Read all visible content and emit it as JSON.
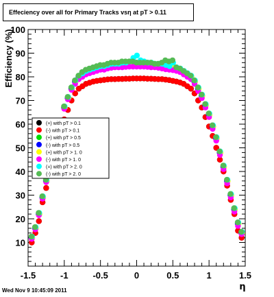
{
  "title": "Effeciency over all for Primary Tracks vsη at pT > 0.11",
  "footer": "Wed Nov  9 10:45:09 2011",
  "chart_data": {
    "type": "scatter",
    "xlabel": "η",
    "ylabel": "Efficiency (%)",
    "xlim": [
      -1.5,
      1.5
    ],
    "ylim": [
      0,
      100
    ],
    "x_ticks": [
      "-1.5",
      "-1",
      "-0.5",
      "0",
      "0.5",
      "1",
      "1.5"
    ],
    "y_ticks": [
      "10",
      "20",
      "30",
      "40",
      "50",
      "60",
      "70",
      "80",
      "90",
      "100"
    ],
    "legend_position": "middle-left",
    "x": [
      -1.45,
      -1.4,
      -1.35,
      -1.3,
      -1.25,
      -1.2,
      -1.15,
      -1.1,
      -1.05,
      -1.0,
      -0.95,
      -0.9,
      -0.85,
      -0.8,
      -0.75,
      -0.7,
      -0.65,
      -0.6,
      -0.55,
      -0.5,
      -0.45,
      -0.4,
      -0.35,
      -0.3,
      -0.25,
      -0.2,
      -0.15,
      -0.1,
      -0.05,
      0.0,
      0.05,
      0.1,
      0.15,
      0.2,
      0.25,
      0.3,
      0.35,
      0.4,
      0.45,
      0.5,
      0.55,
      0.6,
      0.65,
      0.7,
      0.75,
      0.8,
      0.85,
      0.9,
      0.95,
      1.0,
      1.05,
      1.1,
      1.15,
      1.2,
      1.25,
      1.3,
      1.35,
      1.4,
      1.45
    ],
    "series": [
      {
        "name": "(+) with pT > 0.1",
        "color": "#000000",
        "offset": 0.0,
        "values": [
          10,
          14,
          19,
          27,
          33,
          40,
          45,
          50,
          56,
          62,
          66,
          70,
          73,
          75,
          76,
          77,
          77.5,
          78,
          78.3,
          78.5,
          78.7,
          78.9,
          79,
          79,
          79.1,
          79.1,
          79.2,
          79.2,
          79.3,
          79.3,
          79.3,
          79.3,
          79.2,
          79.2,
          79.1,
          79,
          79,
          78.8,
          78.6,
          78.3,
          78,
          77.6,
          77,
          76,
          75,
          73,
          70,
          67,
          63,
          59,
          55,
          50,
          45,
          40,
          34,
          28,
          22,
          15,
          12
        ]
      },
      {
        "name": "(-) with pT > 0.1",
        "color": "#ff0000",
        "offset": 0.0,
        "values": [
          10,
          14,
          19,
          27,
          33,
          40,
          45,
          50,
          56,
          62,
          66,
          70,
          73,
          75,
          76,
          77,
          77.5,
          78,
          78.3,
          78.5,
          78.7,
          78.9,
          79,
          79,
          79.1,
          79.1,
          79.2,
          79.2,
          79.3,
          79.3,
          79.3,
          79.3,
          79.2,
          79.2,
          79.1,
          79,
          79,
          78.8,
          78.6,
          78.3,
          78,
          77.6,
          77,
          76,
          75,
          73,
          70,
          67,
          63,
          59,
          55,
          50,
          45,
          40,
          34,
          28,
          22,
          15,
          12
        ]
      },
      {
        "name": "(+) with pT > 0.5",
        "color": "#00dd00",
        "offset": 0.004,
        "values": [
          12,
          16,
          22,
          29,
          36,
          43,
          49,
          55,
          61,
          67,
          71,
          75,
          78,
          80,
          81,
          82,
          82.5,
          83,
          83.5,
          84,
          84,
          84.5,
          85,
          85,
          85,
          85.5,
          85.5,
          86,
          86,
          86,
          86,
          86,
          85.8,
          85.5,
          85.3,
          85,
          85,
          84.5,
          84.2,
          84,
          83.5,
          83,
          82,
          81,
          80,
          78,
          75,
          72,
          68,
          64,
          59,
          54,
          48,
          42,
          36,
          30,
          24,
          18,
          14
        ]
      },
      {
        "name": "(-) with pT > 0.5",
        "color": "#0000ff",
        "offset": -0.004,
        "values": [
          12,
          16,
          22,
          29,
          36,
          43,
          49,
          55,
          61,
          67,
          71,
          75,
          78,
          80,
          81,
          82,
          82.5,
          83,
          83.5,
          84,
          84,
          84.5,
          85,
          85,
          85,
          85.5,
          85.5,
          86,
          86,
          86,
          86,
          86,
          85.8,
          85.5,
          85.3,
          85,
          85,
          84.5,
          84.2,
          84,
          83.5,
          83,
          82,
          81,
          80,
          78,
          75,
          72,
          68,
          64,
          59,
          54,
          48,
          42,
          36,
          30,
          24,
          18,
          14
        ]
      },
      {
        "name": "(+) with pT > 1. 0",
        "color": "#ffff00",
        "offset": 0.008,
        "values": [
          12,
          16,
          22,
          29,
          36,
          43,
          49,
          55,
          61,
          67,
          71,
          75,
          78,
          80,
          81,
          82,
          82.5,
          83,
          83.5,
          84,
          84,
          84.5,
          85,
          85,
          85,
          85.5,
          85.5,
          86,
          86,
          86,
          86,
          86,
          85.8,
          85.5,
          85.3,
          85,
          85,
          84.5,
          84.2,
          84,
          83.5,
          83,
          82,
          81,
          80,
          78,
          75,
          72,
          68,
          64,
          59,
          54,
          48,
          42,
          36,
          30,
          24,
          18,
          14
        ]
      },
      {
        "name": "(-) with pT > 1. 0",
        "color": "#ff00ff",
        "offset": 0.0,
        "values": [
          11.5,
          15.5,
          21.5,
          28.5,
          35.5,
          42.5,
          48.5,
          54.5,
          60.5,
          66.5,
          70.5,
          74.5,
          77,
          79,
          80,
          81,
          81.5,
          82,
          82.5,
          83,
          83,
          83.5,
          83.8,
          84,
          84,
          84,
          84.2,
          84.3,
          84.3,
          84.3,
          84.3,
          84.3,
          84.2,
          84,
          84,
          83.8,
          83.5,
          83.2,
          83,
          82.8,
          82.5,
          82,
          81,
          80,
          79,
          77,
          74,
          71,
          67,
          63,
          58,
          53,
          47,
          41,
          35,
          29,
          23,
          17,
          13.5
        ]
      },
      {
        "name": "(+) with pT > 2. 0",
        "color": "#00ffff",
        "offset": 0.004,
        "values": [
          12.5,
          16.5,
          22.5,
          29.5,
          36.5,
          43.5,
          49.5,
          55.5,
          61.5,
          67.5,
          71.5,
          75.5,
          78.5,
          80.5,
          81.5,
          82.5,
          83,
          83.5,
          84,
          84.5,
          84.5,
          85,
          85.5,
          85.5,
          85.5,
          86,
          86,
          86.5,
          88,
          89,
          87,
          86.5,
          86,
          86,
          85.5,
          85.5,
          85.5,
          85,
          84.5,
          86,
          84,
          83.5,
          82.5,
          81.5,
          80.5,
          78.5,
          75.5,
          72.5,
          68.5,
          64.5,
          59.5,
          54.5,
          48.5,
          42.5,
          36.5,
          30.5,
          24.5,
          18.5,
          14.5
        ]
      },
      {
        "name": "(-) with pT > 2. 0",
        "color": "#55bb55",
        "offset": -0.004,
        "values": [
          12.5,
          16.5,
          22.5,
          29.5,
          36.5,
          43.5,
          49.5,
          55.5,
          61.5,
          67.5,
          71.5,
          75.5,
          78.5,
          80.5,
          82,
          83,
          83.5,
          84,
          84.5,
          85,
          85,
          85.5,
          86,
          86,
          86,
          86.5,
          86.5,
          86.5,
          86.5,
          86,
          86,
          86,
          86,
          86,
          85.5,
          85.5,
          86,
          87,
          86.5,
          87,
          84,
          83.5,
          82.5,
          81.5,
          80.5,
          78.5,
          75.5,
          72.5,
          68.5,
          64.5,
          59.5,
          54.5,
          48.5,
          42.5,
          36.5,
          30.5,
          24.5,
          18.5,
          14.5
        ]
      }
    ]
  }
}
